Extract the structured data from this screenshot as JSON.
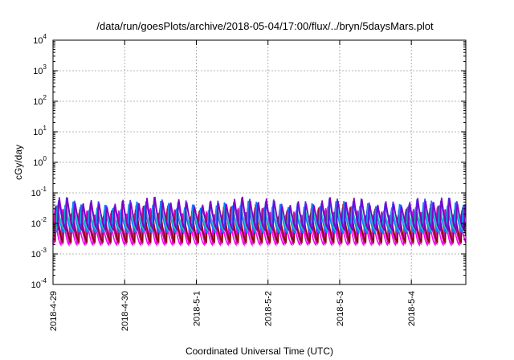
{
  "chart_data": {
    "type": "line",
    "title": "/data/run/goesPlots/archive/2018-05-04/17:00/flux/../bryn/5daysMars.plot",
    "xlabel": "Coordinated Universal Time (UTC)",
    "ylabel": "cGy/day",
    "yscale": "log",
    "ylim": [
      0.0001,
      10000
    ],
    "xlim_days": [
      0,
      5.76
    ],
    "grid": true,
    "y_ticks": [
      {
        "base": "10",
        "exp": "-4",
        "value": 0.0001
      },
      {
        "base": "10",
        "exp": "-3",
        "value": 0.001
      },
      {
        "base": "10",
        "exp": "-2",
        "value": 0.01
      },
      {
        "base": "10",
        "exp": "-1",
        "value": 0.1
      },
      {
        "base": "10",
        "exp": "0",
        "value": 1
      },
      {
        "base": "10",
        "exp": "1",
        "value": 10
      },
      {
        "base": "10",
        "exp": "2",
        "value": 100
      },
      {
        "base": "10",
        "exp": "3",
        "value": 1000
      },
      {
        "base": "10",
        "exp": "4",
        "value": 10000
      }
    ],
    "x_ticks": [
      {
        "label": "2018-4-29",
        "day": 0
      },
      {
        "label": "2018-4-30",
        "day": 1
      },
      {
        "label": "2018-5-1",
        "day": 2
      },
      {
        "label": "2018-5-2",
        "day": 3
      },
      {
        "label": "2018-5-3",
        "day": 4
      },
      {
        "label": "2018-5-4",
        "day": 5
      }
    ],
    "cycles_per_day": 9,
    "series": [
      {
        "color": "#ff00ff",
        "peak": 0.03,
        "trough": 0.002
      },
      {
        "color": "#e010d0",
        "peak": 0.036,
        "trough": 0.003
      },
      {
        "color": "#c01890",
        "peak": 0.04,
        "trough": 0.0022
      },
      {
        "color": "#8b0000",
        "peak": 0.045,
        "trough": 0.0025
      },
      {
        "color": "#0080ff",
        "peak": 0.06,
        "trough": 0.005
      },
      {
        "color": "#20c0c0",
        "peak": 0.05,
        "trough": 0.006
      },
      {
        "color": "#4040ff",
        "peak": 0.075,
        "trough": 0.008
      },
      {
        "color": "#8000c0",
        "peak": 0.08,
        "trough": 0.006
      }
    ]
  }
}
